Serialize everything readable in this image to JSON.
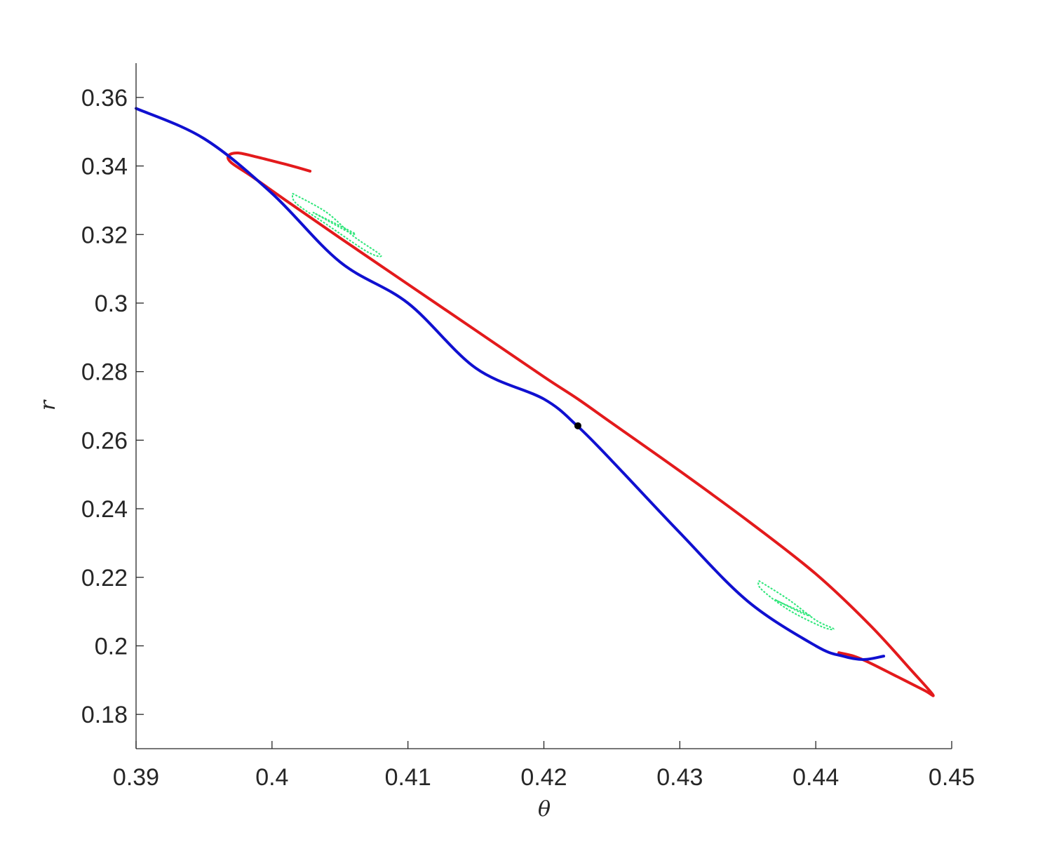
{
  "chart_data": {
    "type": "line",
    "title": "",
    "xlabel": "θ",
    "ylabel": "r",
    "xlim": [
      0.39,
      0.45
    ],
    "ylim": [
      0.17,
      0.37
    ],
    "x_ticks": [
      0.39,
      0.4,
      0.41,
      0.42,
      0.43,
      0.44,
      0.45
    ],
    "x_tick_labels": [
      "0.39",
      "0.4",
      "0.41",
      "0.42",
      "0.43",
      "0.44",
      "0.45"
    ],
    "y_ticks": [
      0.18,
      0.2,
      0.22,
      0.24,
      0.26,
      0.28,
      0.3,
      0.32,
      0.34,
      0.36
    ],
    "y_tick_labels": [
      "0.18",
      "0.2",
      "0.22",
      "0.24",
      "0.26",
      "0.28",
      "0.3",
      "0.32",
      "0.34",
      "0.36"
    ],
    "grid": false,
    "legend": "none",
    "series": [
      {
        "color": "#e31a1c",
        "x": [
          0.4028,
          0.401,
          0.399,
          0.3975,
          0.3968,
          0.397,
          0.3985,
          0.401,
          0.405,
          0.41,
          0.415,
          0.42,
          0.4225,
          0.425,
          0.43,
          0.435,
          0.44,
          0.444,
          0.447,
          0.4486,
          0.448,
          0.446,
          0.444,
          0.4428,
          0.4417
        ],
        "y": [
          0.3385,
          0.3405,
          0.3425,
          0.3438,
          0.343,
          0.341,
          0.337,
          0.33,
          0.319,
          0.3055,
          0.292,
          0.2785,
          0.272,
          0.265,
          0.251,
          0.2365,
          0.221,
          0.206,
          0.193,
          0.1858,
          0.187,
          0.191,
          0.195,
          0.197,
          0.198
        ]
      },
      {
        "color": "#1010d0",
        "x": [
          0.39,
          0.395,
          0.4,
          0.405,
          0.41,
          0.415,
          0.42,
          0.4225,
          0.425,
          0.43,
          0.435,
          0.44,
          0.442,
          0.4435,
          0.445
        ],
        "y": [
          0.3568,
          0.348,
          0.332,
          0.312,
          0.3,
          0.281,
          0.272,
          0.264,
          0.254,
          0.233,
          0.213,
          0.2,
          0.197,
          0.196,
          0.197
        ]
      }
    ],
    "islands": [
      {
        "color": "#2ee67a",
        "x": [
          0.4015,
          0.404,
          0.406,
          0.408,
          0.407,
          0.404,
          0.4018,
          0.4015
        ],
        "y": [
          0.332,
          0.3265,
          0.3195,
          0.314,
          0.315,
          0.323,
          0.329,
          0.332
        ]
      },
      {
        "color": "#2ee67a",
        "x": [
          0.403,
          0.4055,
          0.406,
          0.4035,
          0.403
        ],
        "y": [
          0.3265,
          0.321,
          0.3205,
          0.3255,
          0.3265
        ]
      },
      {
        "color": "#2ee67a",
        "x": [
          0.4358,
          0.438,
          0.44,
          0.4413,
          0.4405,
          0.438,
          0.436,
          0.4358
        ],
        "y": [
          0.219,
          0.2135,
          0.2075,
          0.205,
          0.2055,
          0.2105,
          0.2165,
          0.219
        ]
      },
      {
        "color": "#2ee67a",
        "x": [
          0.437,
          0.439,
          0.4395,
          0.4375,
          0.437
        ],
        "y": [
          0.2135,
          0.2095,
          0.209,
          0.2125,
          0.2135
        ]
      }
    ],
    "fixed_point": {
      "x": 0.4225,
      "y": 0.2642,
      "color": "#000000"
    }
  }
}
